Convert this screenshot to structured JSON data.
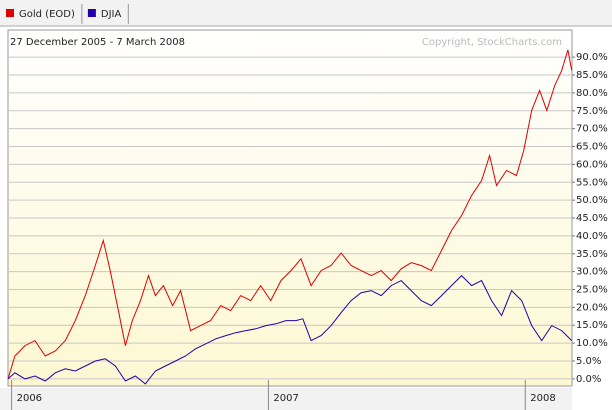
{
  "chart_data": {
    "type": "line",
    "subtitle": "27 December 2005 - 7 March 2008",
    "annotation": "Copyright, StockCharts.com",
    "xlim": [
      2005.986,
      2008.182
    ],
    "xticks": [
      2006,
      2007,
      2008
    ],
    "ylim": [
      -2,
      97.6
    ],
    "yticks": [
      {
        "value": 0,
        "label": "0.0%"
      },
      {
        "value": 5,
        "label": "5.0%"
      },
      {
        "value": 10,
        "label": "10.0%"
      },
      {
        "value": 15,
        "label": "15.0%"
      },
      {
        "value": 20,
        "label": "20.0%"
      },
      {
        "value": 25,
        "label": "25.0%"
      },
      {
        "value": 30,
        "label": "30.0%"
      },
      {
        "value": 35,
        "label": "35.0%"
      },
      {
        "value": 40,
        "label": "40.0%"
      },
      {
        "value": 45,
        "label": "45.0%"
      },
      {
        "value": 50,
        "label": "50.0%"
      },
      {
        "value": 55,
        "label": "55.0%"
      },
      {
        "value": 60,
        "label": "60.0%"
      },
      {
        "value": 65,
        "label": "65.0%"
      },
      {
        "value": 70,
        "label": "70.0%"
      },
      {
        "value": 75,
        "label": "75.0%"
      },
      {
        "value": 80,
        "label": "80.0%"
      },
      {
        "value": 85,
        "label": "85.0%"
      },
      {
        "value": 90,
        "label": "90.0%"
      }
    ],
    "grid": true,
    "series": [
      {
        "name": "Gold (EOD)",
        "color": "#dd0000",
        "x": [
          2005.986,
          2006.013,
          2006.052,
          2006.091,
          2006.131,
          2006.17,
          2006.209,
          2006.248,
          2006.287,
          2006.326,
          2006.357,
          2006.384,
          2006.416,
          2006.443,
          2006.47,
          2006.502,
          2006.533,
          2006.56,
          2006.591,
          2006.627,
          2006.658,
          2006.697,
          2006.736,
          2006.775,
          2006.814,
          2006.853,
          2006.892,
          2006.931,
          2006.97,
          2007.009,
          2007.049,
          2007.088,
          2007.127,
          2007.166,
          2007.205,
          2007.244,
          2007.283,
          2007.322,
          2007.361,
          2007.4,
          2007.439,
          2007.478,
          2007.517,
          2007.556,
          2007.595,
          2007.634,
          2007.674,
          2007.713,
          2007.752,
          2007.791,
          2007.83,
          2007.861,
          2007.888,
          2007.927,
          2007.966,
          2007.994,
          2008.025,
          2008.056,
          2008.084,
          2008.115,
          2008.142,
          2008.166,
          2008.181
        ],
        "values": [
          0,
          6.4,
          9.3,
          10.7,
          6.4,
          7.8,
          10.7,
          16.3,
          23.3,
          31.7,
          38.7,
          30.3,
          19.1,
          9.3,
          16.3,
          21.9,
          28.9,
          23.3,
          26.1,
          20.5,
          24.7,
          13.5,
          14.9,
          16.3,
          20.5,
          19.1,
          23.3,
          21.9,
          26.1,
          21.9,
          27.5,
          30.3,
          33.6,
          26.1,
          30.3,
          31.7,
          35.2,
          31.7,
          30.3,
          28.9,
          30.3,
          27.5,
          30.8,
          32.5,
          31.7,
          30.3,
          35.9,
          41.5,
          45.7,
          51.3,
          55.5,
          62.5,
          54.1,
          58.3,
          56.9,
          63.9,
          75.1,
          80.7,
          75.1,
          82.1,
          86.3,
          92,
          86.3
        ]
      },
      {
        "name": "DJIA",
        "color": "#2200aa",
        "x": [
          2005.986,
          2006.013,
          2006.052,
          2006.091,
          2006.131,
          2006.17,
          2006.209,
          2006.248,
          2006.287,
          2006.326,
          2006.365,
          2006.404,
          2006.443,
          2006.482,
          2006.521,
          2006.56,
          2006.599,
          2006.638,
          2006.677,
          2006.716,
          2006.756,
          2006.795,
          2006.834,
          2006.873,
          2006.912,
          2006.951,
          2006.99,
          2007.029,
          2007.068,
          2007.107,
          2007.134,
          2007.166,
          2007.205,
          2007.244,
          2007.283,
          2007.322,
          2007.361,
          2007.4,
          2007.439,
          2007.478,
          2007.517,
          2007.556,
          2007.595,
          2007.634,
          2007.674,
          2007.713,
          2007.752,
          2007.791,
          2007.83,
          2007.869,
          2007.908,
          2007.947,
          2007.986,
          2008.025,
          2008.064,
          2008.103,
          2008.142,
          2008.181
        ],
        "values": [
          0,
          1.7,
          0,
          0.8,
          -0.6,
          1.7,
          2.8,
          2.2,
          3.6,
          5,
          5.6,
          3.6,
          -0.6,
          0.8,
          -1.4,
          2.2,
          3.6,
          5,
          6.4,
          8.4,
          9.8,
          11.2,
          12.1,
          12.9,
          13.5,
          14,
          14.9,
          15.4,
          16.3,
          16.3,
          16.8,
          10.7,
          12.1,
          14.9,
          18.5,
          21.9,
          24.1,
          24.7,
          23.3,
          26.1,
          27.5,
          24.7,
          21.9,
          20.5,
          23.3,
          26.1,
          28.9,
          26.1,
          27.5,
          21.9,
          17.7,
          24.7,
          21.9,
          14.9,
          10.7,
          14.9,
          13.5,
          10.7
        ]
      }
    ]
  }
}
